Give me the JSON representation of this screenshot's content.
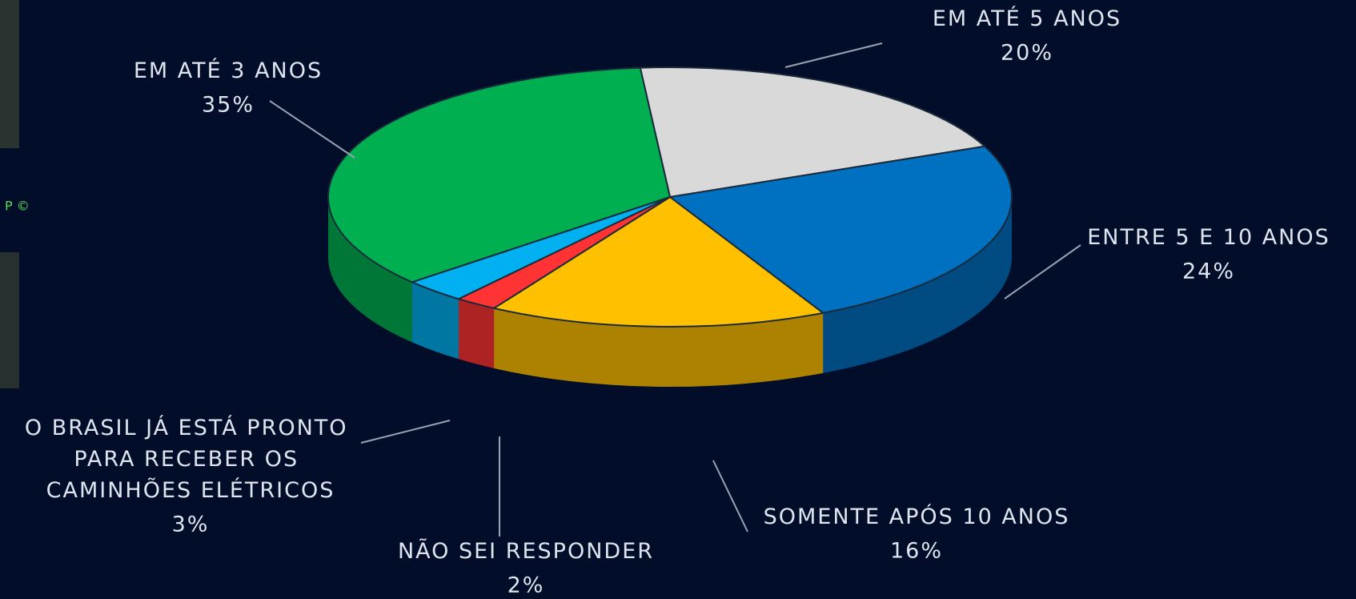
{
  "watermark": "P ©",
  "chart_data": {
    "type": "pie3d",
    "categories": [
      "EM ATÉ 5 ANOS",
      "ENTRE 5 E 10 ANOS",
      "SOMENTE APÓS 10 ANOS",
      "NÃO SEI RESPONDER",
      "O BRASIL JÁ ESTÁ PRONTO PARA RECEBER OS CAMINHÕES ELÉTRICOS",
      "EM ATÉ 3 ANOS"
    ],
    "values": [
      20,
      24,
      16,
      2,
      3,
      35
    ],
    "value_labels": [
      "20%",
      "24%",
      "16%",
      "2%",
      "3%",
      "35%"
    ],
    "colors": [
      "#d9d9d9",
      "#0070c0",
      "#ffc000",
      "#ff3333",
      "#00b0f0",
      "#00b050"
    ]
  }
}
